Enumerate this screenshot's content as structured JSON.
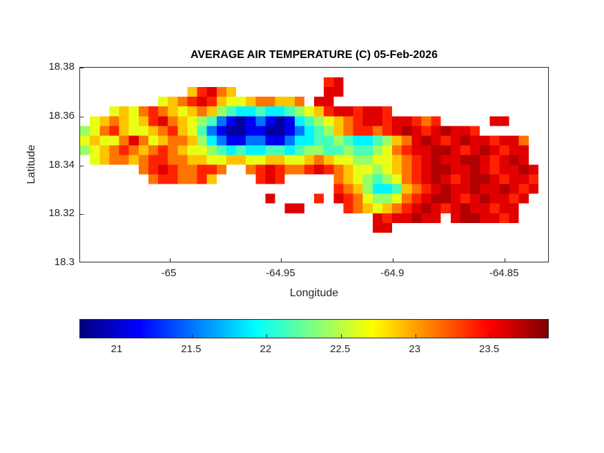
{
  "colors": {
    "background": "#ffffff",
    "axis": "#262626",
    "title_text": "#000000"
  },
  "chart_data": {
    "type": "heatmap",
    "title": "AVERAGE AIR TEMPERATURE (C) 05-Feb-2026",
    "unit": "C",
    "xlabel": "Longitude",
    "ylabel": "Latitude",
    "xlim": [
      -65.04,
      -64.83
    ],
    "ylim": [
      18.3,
      18.38
    ],
    "xticks": [
      -65,
      -64.95,
      -64.9,
      -64.85
    ],
    "xtick_labels": [
      "-65",
      "-64.95",
      "-64.9",
      "-64.85"
    ],
    "yticks": [
      18.38,
      18.36,
      18.34,
      18.32,
      18.3
    ],
    "ytick_labels": [
      "18.38",
      "18.36",
      "18.34",
      "18.32",
      "18.3"
    ],
    "grid_on": false,
    "colormap": "jet",
    "color_axis": [
      20.75,
      23.9
    ],
    "colorbar": {
      "orientation": "horizontal",
      "position": "below",
      "ticks": [
        21,
        21.5,
        22,
        22.5,
        23,
        23.5
      ],
      "tick_labels": [
        "21",
        "21.5",
        "22",
        "22.5",
        "23",
        "23.5"
      ]
    },
    "grid": {
      "comment": "Temperature field over the island (St Thomas area). Each char = one cell; '.' = ocean/no data; level chars map to deg C in 'levels'. Row 0 = lat 18.38 (top), col 0 = lon -65.04 (left).",
      "lon_origin": -65.04,
      "lat_origin": 18.38,
      "dlon": 0.004375,
      "dlat": 0.004,
      "ncols": 48,
      "nrows": 20,
      "ocean_char": ".",
      "levels": {
        "1": 20.85,
        "2": 21.1,
        "3": 21.5,
        "4": 21.9,
        "5": 22.15,
        "6": 22.4,
        "7": 22.65,
        "8": 22.9,
        "9": 23.15,
        "a": 23.4,
        "b": 23.6,
        "c": 23.75
      },
      "rows": [
        "................................................",
        ".........................ab.....................",
        "...........8ab98.........bb.....................",
        "........789aba877899889.bb......................",
        "...7879a98789865445445678abbabba................",
        ".789878ab9876532123212456789abbabba9a.....bb....",
        "679a87789a875321122112345689aa9abcbabcbba.......",
        "78779b9789986432233223445565445689bcbabcbbabb9..",
        "6789a989a987765454455456655655679abbccbabcbabb..",
        ".789989aa9988778877887789877667789abcbbccbabcb..",
        "......9aba99aa9..9aba99aba98776789abccbbcbabbcb.",
        ".......9aa99a8....aba.....98765679abcbabccbabba.",
        "..........................a98644589abcbbcbbcbab.",
        "...................b....a.ba976679abccbabcbbab..",
        ".....................bb....a98789abcbabcbbabb...",
        "..............................babbcbb.bccbbab...",
        "..............................bb................",
        "................................................",
        "................................................",
        "................................................"
      ]
    }
  }
}
